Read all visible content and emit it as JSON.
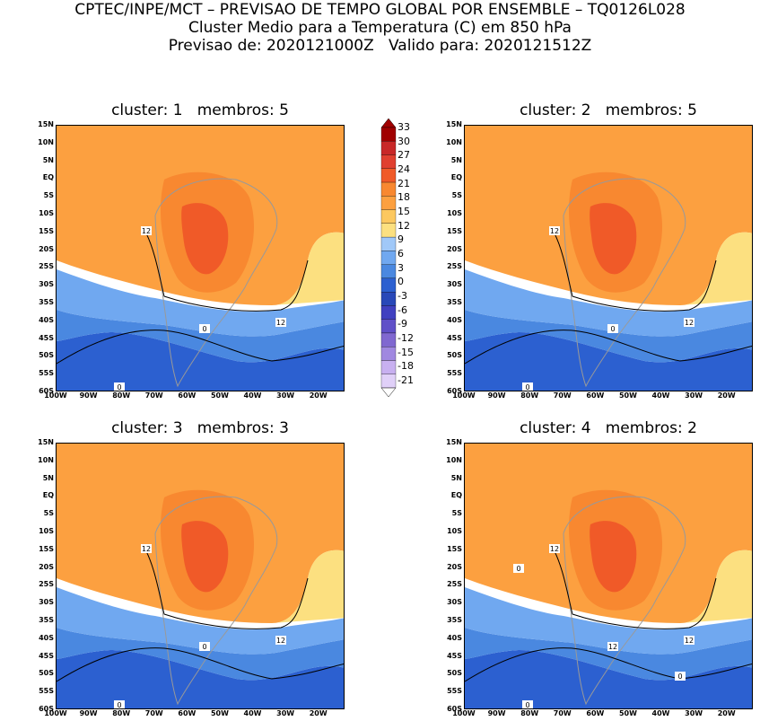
{
  "header": {
    "line1": "CPTEC/INPE/MCT – PREVISAO DE TEMPO GLOBAL POR ENSEMBLE – TQ0126L028",
    "line2": "Cluster Medio para a Temperatura (C) em 850 hPa",
    "line3": "Previsao de: 2020121000Z   Valido para: 2020121512Z"
  },
  "panels": [
    {
      "title": "cluster: 1   membros: 5",
      "contours": [
        "12",
        "12",
        "0",
        "0"
      ]
    },
    {
      "title": "cluster: 2   membros: 5",
      "contours": [
        "12",
        "12",
        "0",
        "0"
      ]
    },
    {
      "title": "cluster: 3   membros: 3",
      "contours": [
        "12",
        "12",
        "0",
        "0"
      ]
    },
    {
      "title": "cluster: 4   membros: 2",
      "contours": [
        "12",
        "12",
        "12",
        "0",
        "0",
        "0"
      ]
    }
  ],
  "lat_labels": [
    "15N",
    "10N",
    "5N",
    "EQ",
    "5S",
    "10S",
    "15S",
    "20S",
    "25S",
    "30S",
    "35S",
    "40S",
    "45S",
    "50S",
    "55S",
    "60S"
  ],
  "lon_labels": [
    "100W",
    "90W",
    "80W",
    "70W",
    "60W",
    "50W",
    "40W",
    "30W",
    "20W"
  ],
  "colorbar": {
    "labels": [
      "33",
      "30",
      "27",
      "24",
      "21",
      "18",
      "15",
      "12",
      "9",
      "6",
      "3",
      "0",
      "-3",
      "-6",
      "-9",
      "-12",
      "-15",
      "-18",
      "-21"
    ],
    "colors": [
      "#a00000",
      "#c82828",
      "#e04030",
      "#f05a28",
      "#f88830",
      "#fca040",
      "#fcc860",
      "#fce080",
      "#a0c8f8",
      "#70a8f0",
      "#4a88e0",
      "#2c60d0",
      "#2848b8",
      "#4040c0",
      "#6050c8",
      "#8068d0",
      "#a088e0",
      "#c8b0f0",
      "#e0d0f8"
    ]
  }
}
